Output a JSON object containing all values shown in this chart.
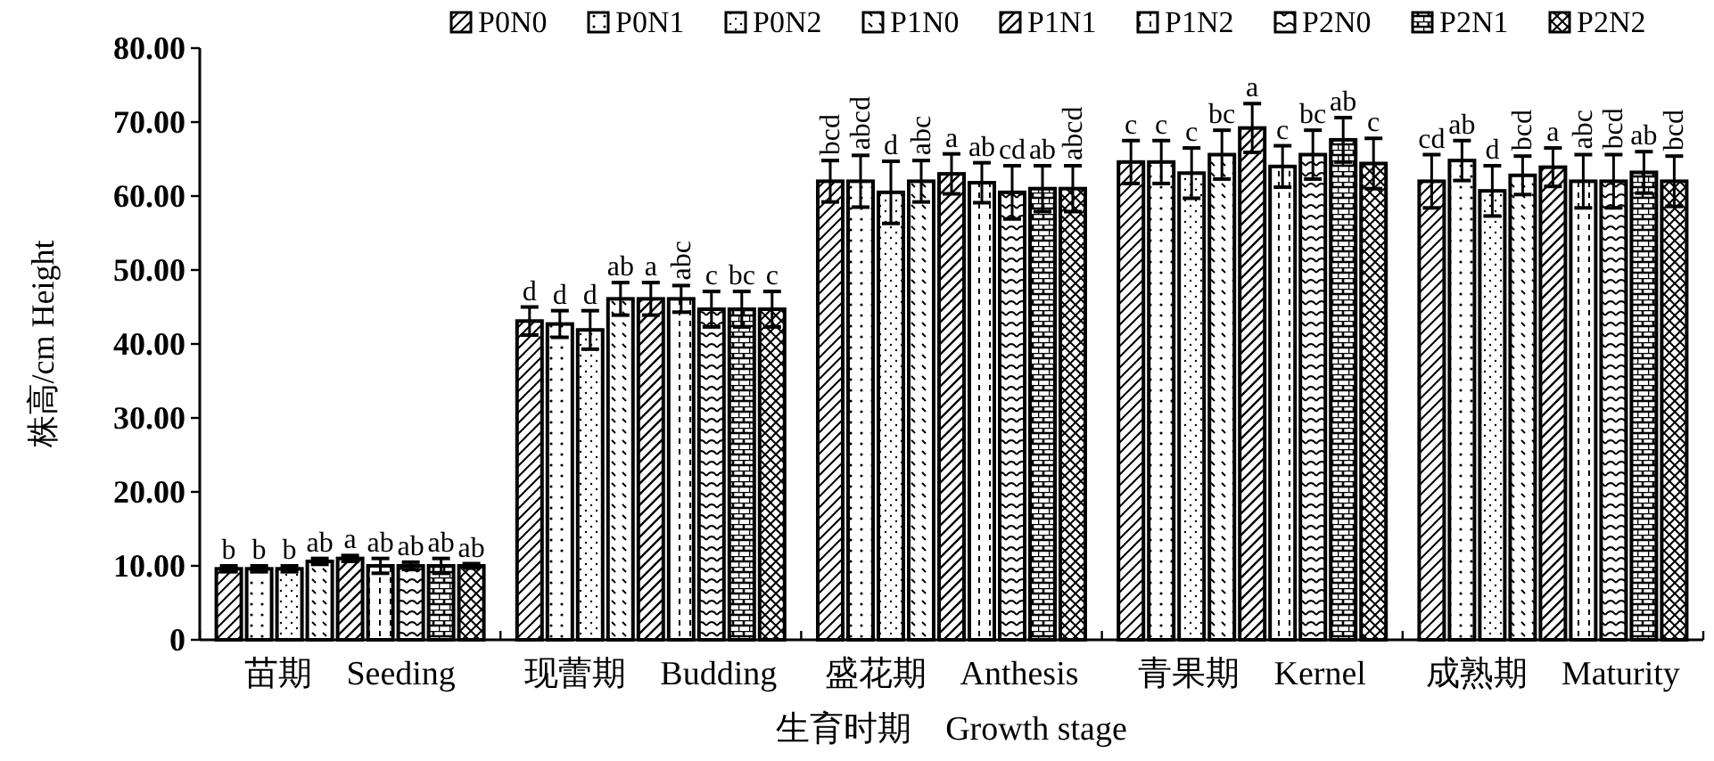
{
  "chart_data": {
    "type": "bar",
    "ylabel": "株高/cm Height",
    "xlabel": "生育时期　Growth stage",
    "categories": [
      "苗期　Seeding",
      "现蕾期　Budding",
      "盛花期　Anthesis",
      "青果期　Kernel",
      "成熟期　Maturity"
    ],
    "ylim": [
      0,
      80
    ],
    "yticks": [
      0,
      {
        "value": 10,
        "label": "10.00"
      },
      {
        "value": 20,
        "label": "20.00"
      },
      {
        "value": 30,
        "label": "30.00"
      },
      {
        "value": 40,
        "label": "40.00"
      },
      {
        "value": 50,
        "label": "50.00"
      },
      {
        "value": 60,
        "label": "60.00"
      },
      {
        "value": 70,
        "label": "70.00"
      },
      {
        "value": 80,
        "label": "80.00"
      }
    ],
    "legend": "top",
    "grid": false,
    "series": [
      {
        "name": "P0N0",
        "color": "#000000",
        "values": [
          9.6,
          43.1,
          62.0,
          64.6,
          62.0
        ],
        "errors": [
          0.4,
          1.9,
          2.8,
          2.9,
          3.6
        ],
        "value_labels": [
          "b",
          "d",
          "bcd",
          "c",
          "cd"
        ]
      },
      {
        "name": "P0N1",
        "color": "#000000",
        "values": [
          9.6,
          42.7,
          62.0,
          64.6,
          64.8
        ],
        "errors": [
          0.4,
          1.8,
          3.5,
          2.9,
          2.7
        ],
        "value_labels": [
          "b",
          "d",
          "abcd",
          "c",
          "ab"
        ]
      },
      {
        "name": "P0N2",
        "color": "#000000",
        "values": [
          9.6,
          41.9,
          60.5,
          63.1,
          60.7
        ],
        "errors": [
          0.4,
          2.6,
          4.2,
          3.4,
          3.4
        ],
        "value_labels": [
          "b",
          "d",
          "d",
          "c",
          "d"
        ]
      },
      {
        "name": "P1N0",
        "color": "#000000",
        "values": [
          10.6,
          46.1,
          62.0,
          65.6,
          62.8
        ],
        "errors": [
          0.4,
          2.2,
          2.8,
          3.3,
          2.6
        ],
        "value_labels": [
          "ab",
          "ab",
          "abc",
          "bc",
          "bcd"
        ]
      },
      {
        "name": "P1N1",
        "color": "#000000",
        "values": [
          11.0,
          46.1,
          63.0,
          69.2,
          63.9
        ],
        "errors": [
          0.4,
          2.2,
          2.7,
          3.3,
          2.6
        ],
        "value_labels": [
          "a",
          "a",
          "a",
          "a",
          "a"
        ]
      },
      {
        "name": "P1N2",
        "color": "#000000",
        "values": [
          10.0,
          46.1,
          61.8,
          64.0,
          62.0
        ],
        "errors": [
          1.0,
          1.8,
          2.7,
          2.8,
          3.6
        ],
        "value_labels": [
          "ab",
          "abc",
          "ab",
          "c",
          "abc"
        ]
      },
      {
        "name": "P2N0",
        "color": "#000000",
        "values": [
          10.0,
          44.7,
          60.5,
          65.6,
          62.0
        ],
        "errors": [
          0.5,
          2.4,
          3.6,
          3.3,
          3.6
        ],
        "value_labels": [
          "ab",
          "c",
          "cd",
          "bc",
          "bcd"
        ]
      },
      {
        "name": "P2N1",
        "color": "#000000",
        "values": [
          10.0,
          44.7,
          61.0,
          67.6,
          63.2
        ],
        "errors": [
          1.0,
          2.4,
          3.1,
          3.0,
          2.8
        ],
        "value_labels": [
          "ab",
          "bc",
          "ab",
          "ab",
          "ab"
        ]
      },
      {
        "name": "P2N2",
        "color": "#000000",
        "values": [
          10.0,
          44.7,
          61.0,
          64.4,
          62.0
        ],
        "errors": [
          0.3,
          2.4,
          3.1,
          3.4,
          3.4
        ],
        "value_labels": [
          "ab",
          "c",
          "abcd",
          "c",
          "bcd"
        ]
      }
    ]
  }
}
